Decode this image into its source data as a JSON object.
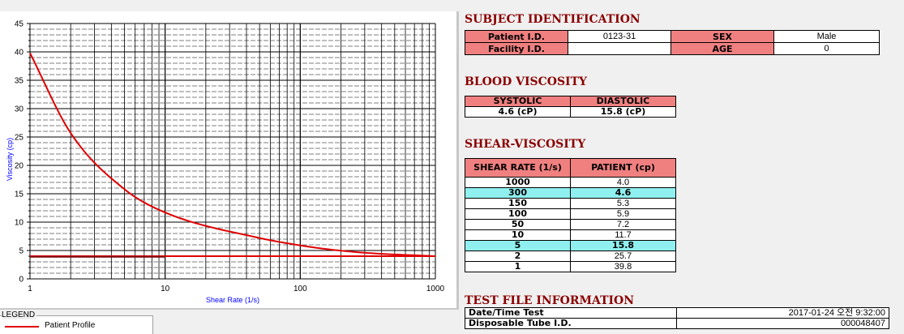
{
  "chart_data": {
    "type": "line",
    "xlabel": "Shear Rate (1/s)",
    "ylabel": "Viscosity (cp)",
    "x_scale": "log",
    "xlim": [
      1,
      1000
    ],
    "ylim": [
      0,
      45
    ],
    "x_ticks": [
      "1",
      "10",
      "100",
      "1000"
    ],
    "y_ticks": [
      "0",
      "5",
      "10",
      "15",
      "20",
      "25",
      "30",
      "35",
      "40",
      "45"
    ],
    "grid": true,
    "series": [
      {
        "name": "Patient Profile",
        "color": "#e00000",
        "x": [
          1,
          2,
          5,
          10,
          50,
          100,
          150,
          300,
          1000
        ],
        "y": [
          39.8,
          25.7,
          15.8,
          11.7,
          7.2,
          5.9,
          5.3,
          4.6,
          4.0
        ]
      },
      {
        "name": "",
        "color": "#e00000",
        "x": [
          1,
          1000
        ],
        "y": [
          4.0,
          4.0
        ]
      },
      {
        "name": "",
        "color": "#800000",
        "x": [
          1,
          10
        ],
        "y": [
          3.9,
          3.9
        ]
      }
    ]
  },
  "legend": {
    "title": "LEGEND",
    "items": [
      {
        "label": "Patient Profile",
        "color": "#e00000"
      }
    ]
  },
  "subject": {
    "title": "SUBJECT IDENTIFICATION",
    "patient_id_label": "Patient I.D.",
    "patient_id": "0123-31",
    "sex_label": "SEX",
    "sex": "Male",
    "facility_label": "Facility I.D.",
    "facility": "",
    "age_label": "AGE",
    "age": "0"
  },
  "blood": {
    "title": "BLOOD VISCOSITY",
    "systolic_label": "SYSTOLIC",
    "diastolic_label": "DIASTOLIC",
    "systolic": "4.6 (cP)",
    "diastolic": "15.8 (cP)"
  },
  "shear": {
    "title": "SHEAR-VISCOSITY",
    "col1": "SHEAR RATE (1/s)",
    "col2": "PATIENT (cp)",
    "rows": [
      {
        "rate": "1000",
        "value": "4.0",
        "hl": false
      },
      {
        "rate": "300",
        "value": "4.6",
        "hl": true
      },
      {
        "rate": "150",
        "value": "5.3",
        "hl": false
      },
      {
        "rate": "100",
        "value": "5.9",
        "hl": false
      },
      {
        "rate": "50",
        "value": "7.2",
        "hl": false
      },
      {
        "rate": "10",
        "value": "11.7",
        "hl": false
      },
      {
        "rate": "5",
        "value": "15.8",
        "hl": true
      },
      {
        "rate": "2",
        "value": "25.7",
        "hl": false
      },
      {
        "rate": "1",
        "value": "39.8",
        "hl": false
      }
    ],
    "highlight_color": "#90f0f0"
  },
  "test_file": {
    "title": "TEST FILE INFORMATION",
    "datetime_label": "Date/Time Test",
    "datetime": "2017-01-24  오전 9:32:00",
    "tube_label": "Disposable Tube I.D.",
    "tube": "000048407"
  },
  "colors": {
    "header_bg": "#f08080",
    "title": "#8b0000",
    "axis_label": "#0000ff"
  }
}
